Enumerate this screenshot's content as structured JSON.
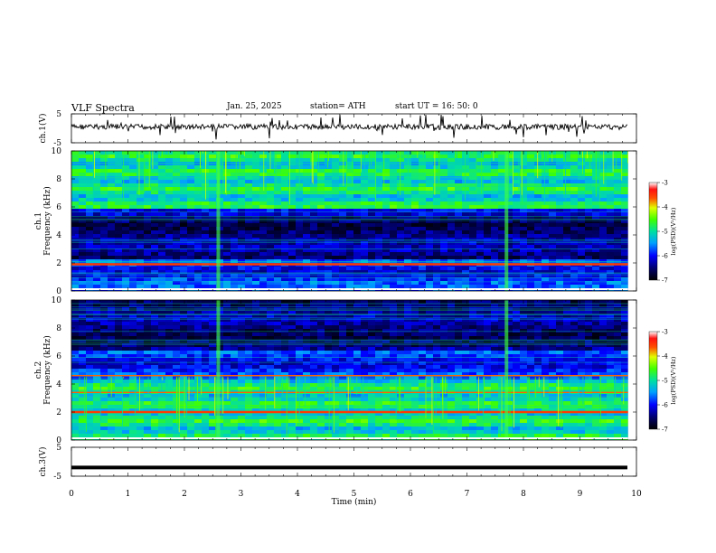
{
  "header": {
    "title": "VLF  Spectra",
    "date": "Jan. 25, 2025",
    "station": "station= ATH",
    "start": "start  UT  =   16: 50: 0"
  },
  "chart_data": [
    {
      "type": "line",
      "panel": "ch1-waveform",
      "ylabel": "ch.1(V)",
      "yticks": [
        "5",
        "-5"
      ],
      "ylim": [
        -5,
        5
      ],
      "trace_level": 0.5,
      "trace_color": "#000000"
    },
    {
      "type": "heatmap",
      "panel": "ch1-spectrogram",
      "ylabel": "ch.1\nFrequency  (kHz)",
      "yticks": [
        "0",
        "2",
        "4",
        "6",
        "8",
        "10"
      ],
      "ylim": [
        0,
        10
      ],
      "colorbar": {
        "label": "log(PSD)(V²/Hz)",
        "ticks": [
          "-3",
          "-4",
          "-5",
          "-6",
          "-7"
        ],
        "range": [
          -7,
          -3
        ]
      },
      "features": {
        "strong_line_khz": 1.9,
        "noisy_band_khz": [
          6,
          10
        ],
        "quiet_band_khz": [
          2.5,
          5.5
        ],
        "impulse_minutes": [
          2.6,
          7.7
        ]
      }
    },
    {
      "type": "heatmap",
      "panel": "ch2-spectrogram",
      "ylabel": "ch.2\nFrequency  (kHz)",
      "yticks": [
        "0",
        "2",
        "4",
        "6",
        "8",
        "10"
      ],
      "ylim": [
        0,
        10
      ],
      "colorbar": {
        "label": "log(PSD)(V²/Hz)",
        "ticks": [
          "-3",
          "-4",
          "-5",
          "-6",
          "-7"
        ],
        "range": [
          -7,
          -3
        ]
      },
      "features": {
        "strong_line_khz": 2.0,
        "secondary_lines_khz": [
          3.4,
          4.6
        ],
        "noisy_band_khz": [
          0,
          4.5
        ],
        "quiet_band_khz": [
          6.5,
          10
        ],
        "impulse_minutes": [
          2.6,
          7.7
        ]
      }
    },
    {
      "type": "line",
      "panel": "ch3-waveform",
      "ylabel": "ch.3(V)",
      "yticks": [
        "5",
        "-5"
      ],
      "ylim": [
        -5,
        5
      ],
      "trace_level": -2,
      "trace_color": "#000000"
    }
  ],
  "xaxis": {
    "label": "Time  (min)",
    "ticks": [
      "0",
      "1",
      "2",
      "3",
      "4",
      "5",
      "6",
      "7",
      "8",
      "9",
      "10"
    ],
    "xlim": [
      0,
      10
    ],
    "data_end": 9.85
  }
}
